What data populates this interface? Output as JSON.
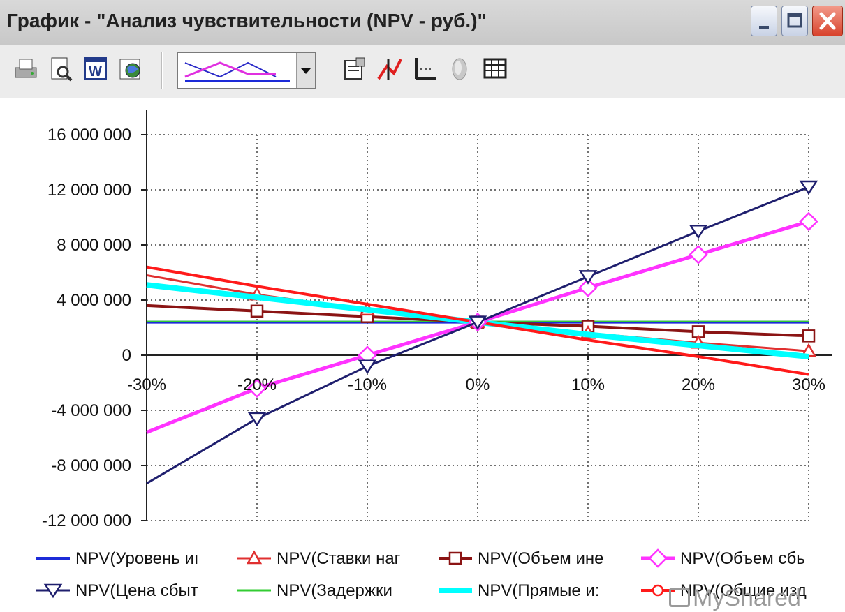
{
  "window": {
    "title": "График - \"Анализ чувствительности (NPV - руб.)\""
  },
  "toolbar": {
    "icons": [
      "print-icon",
      "print-preview-icon",
      "word-export-icon",
      "web-export-icon",
      "chart-type-combo",
      "properties-icon",
      "series-icon",
      "axes-icon",
      "3d-icon",
      "data-table-icon"
    ]
  },
  "chart_data": {
    "type": "line",
    "title": "",
    "xlabel": "",
    "ylabel": "",
    "categories": [
      "-30%",
      "-20%",
      "-10%",
      "0%",
      "10%",
      "20%",
      "30%"
    ],
    "y_ticks": [
      "16 000 000",
      "12 000 000",
      "8 000 000",
      "4 000 000",
      "0",
      "-4 000 000",
      "-8 000 000",
      "-12 000 000"
    ],
    "y_tick_values": [
      16000000,
      12000000,
      8000000,
      4000000,
      0,
      -4000000,
      -8000000,
      -12000000
    ],
    "ylim": [
      -12000000,
      16000000
    ],
    "grid": true,
    "legend_position": "bottom",
    "series": [
      {
        "name": "NPV(Уровень и",
        "color": "#1c2bd8",
        "marker": "none",
        "width": 4,
        "values": [
          2400000,
          2400000,
          2400000,
          2400000,
          2400000,
          2400000,
          2400000
        ]
      },
      {
        "name": "NPV(Ставки на",
        "color": "#e03030",
        "marker": "triangle-up",
        "width": 3,
        "values": [
          5800000,
          4400000,
          3300000,
          2400000,
          1600000,
          900000,
          300000
        ]
      },
      {
        "name": "NPV(Объем ин",
        "color": "#8b1414",
        "marker": "square",
        "width": 4,
        "values": [
          3600000,
          3200000,
          2800000,
          2400000,
          2100000,
          1700000,
          1400000
        ]
      },
      {
        "name": "NPV(Объем сб",
        "color": "#ff33ff",
        "marker": "diamond",
        "width": 5,
        "values": [
          -5600000,
          -2400000,
          0,
          2400000,
          4900000,
          7300000,
          9700000
        ]
      },
      {
        "name": "NPV(Цена сбыт",
        "color": "#1f1f6e",
        "marker": "triangle-down",
        "width": 3,
        "values": [
          -9300000,
          -4600000,
          -800000,
          2400000,
          5700000,
          9000000,
          12200000
        ]
      },
      {
        "name": "NPV(Задержки",
        "color": "#33cc33",
        "marker": "none",
        "width": 2,
        "values": [
          2450000,
          2450000,
          2450000,
          2450000,
          2450000,
          2450000,
          2450000
        ]
      },
      {
        "name": "NPV(Прямые и",
        "color": "#00ffff",
        "marker": "none",
        "width": 8,
        "values": [
          5100000,
          4200000,
          3300000,
          2400000,
          1500000,
          700000,
          -100000
        ]
      },
      {
        "name": "NPV(Общие изд",
        "color": "#ff1a1a",
        "marker": "circle",
        "width": 4,
        "values": [
          6400000,
          5000000,
          3700000,
          2400000,
          1100000,
          -100000,
          -1400000
        ]
      }
    ]
  },
  "legend": {
    "items": [
      "NPV(Уровень иı",
      "NPV(Ставки наг",
      "NPV(Объем ине",
      "NPV(Объем сбь",
      "NPV(Цена сбыт",
      "NPV(Задержки",
      "NPV(Прямые и:",
      "NPV(Общие изд"
    ]
  },
  "watermark": {
    "text": "MyShared"
  }
}
